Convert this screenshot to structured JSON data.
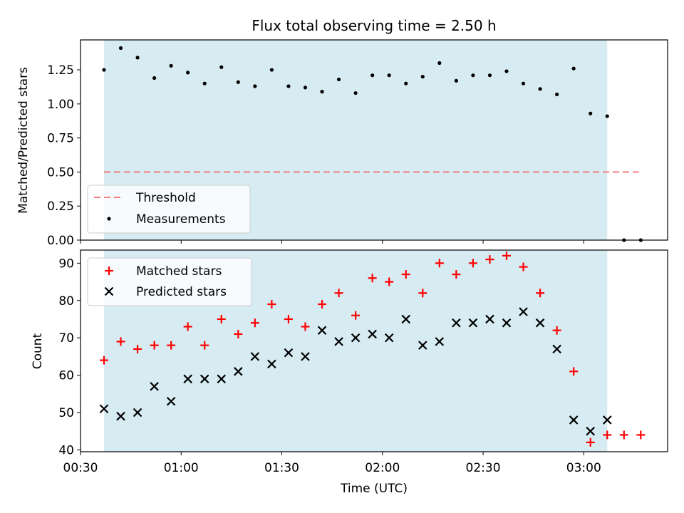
{
  "title": "Flux total observing time = 2.50 h",
  "colors": {
    "shade": "#add8e6",
    "threshold": "#f08080",
    "matched": "#ff0000",
    "predicted": "#000000",
    "measurement": "#000000"
  },
  "chart_data": [
    {
      "type": "scatter",
      "ylabel": "Matched/Predicted stars",
      "ylim": [
        0,
        1.47
      ],
      "yticks": [
        0.0,
        0.25,
        0.5,
        0.75,
        1.0,
        1.25
      ],
      "ytick_labels": [
        "0.00",
        "0.25",
        "0.50",
        "0.75",
        "1.00",
        "1.25"
      ],
      "xlim_minutes": [
        30,
        205
      ],
      "shaded_span": [
        "00:37",
        "03:07"
      ],
      "legend_position": "lower-left",
      "threshold": {
        "name": "Threshold",
        "y": 0.5,
        "x": [
          "00:37",
          "03:17"
        ],
        "style": "dashed"
      },
      "series": [
        {
          "name": "Measurements",
          "x": [
            "00:37",
            "00:42",
            "00:47",
            "00:52",
            "00:57",
            "01:02",
            "01:07",
            "01:12",
            "01:17",
            "01:22",
            "01:27",
            "01:32",
            "01:37",
            "01:42",
            "01:47",
            "01:52",
            "01:57",
            "02:02",
            "02:07",
            "02:12",
            "02:17",
            "02:22",
            "02:27",
            "02:32",
            "02:37",
            "02:42",
            "02:47",
            "02:52",
            "02:57",
            "03:02",
            "03:07",
            "03:12",
            "03:17"
          ],
          "y": [
            1.25,
            1.41,
            1.34,
            1.19,
            1.28,
            1.23,
            1.15,
            1.27,
            1.16,
            1.13,
            1.25,
            1.13,
            1.12,
            1.09,
            1.18,
            1.08,
            1.21,
            1.21,
            1.15,
            1.2,
            1.3,
            1.17,
            1.21,
            1.21,
            1.24,
            1.15,
            1.11,
            1.07,
            1.26,
            0.93,
            0.91,
            0.0,
            0.0
          ]
        }
      ]
    },
    {
      "type": "scatter",
      "xlabel": "Time (UTC)",
      "ylabel": "Count",
      "ylim": [
        39.5,
        93.5
      ],
      "yticks": [
        40,
        50,
        60,
        70,
        80,
        90
      ],
      "xticks": [
        "00:30",
        "01:00",
        "01:30",
        "02:00",
        "02:30",
        "03:00"
      ],
      "xlim_minutes": [
        30,
        205
      ],
      "shaded_span": [
        "00:37",
        "03:07"
      ],
      "legend_position": "upper-left",
      "x": [
        "00:37",
        "00:42",
        "00:47",
        "00:52",
        "00:57",
        "01:02",
        "01:07",
        "01:12",
        "01:17",
        "01:22",
        "01:27",
        "01:32",
        "01:37",
        "01:42",
        "01:47",
        "01:52",
        "01:57",
        "02:02",
        "02:07",
        "02:12",
        "02:17",
        "02:22",
        "02:27",
        "02:32",
        "02:37",
        "02:42",
        "02:47",
        "02:52",
        "02:57",
        "03:02",
        "03:07",
        "03:12",
        "03:17"
      ],
      "series": [
        {
          "name": "Matched stars",
          "marker": "+",
          "values": [
            64,
            69,
            67,
            68,
            68,
            73,
            68,
            75,
            71,
            74,
            79,
            75,
            73,
            79,
            82,
            76,
            86,
            85,
            87,
            82,
            90,
            87,
            90,
            91,
            92,
            89,
            82,
            72,
            61,
            42,
            44,
            44,
            44
          ]
        },
        {
          "name": "Predicted stars",
          "marker": "x",
          "values": [
            51,
            49,
            50,
            57,
            53,
            59,
            59,
            59,
            61,
            65,
            63,
            66,
            65,
            72,
            69,
            70,
            71,
            70,
            75,
            68,
            69,
            74,
            74,
            75,
            74,
            77,
            74,
            67,
            48,
            45,
            48,
            null,
            null
          ]
        }
      ]
    }
  ]
}
